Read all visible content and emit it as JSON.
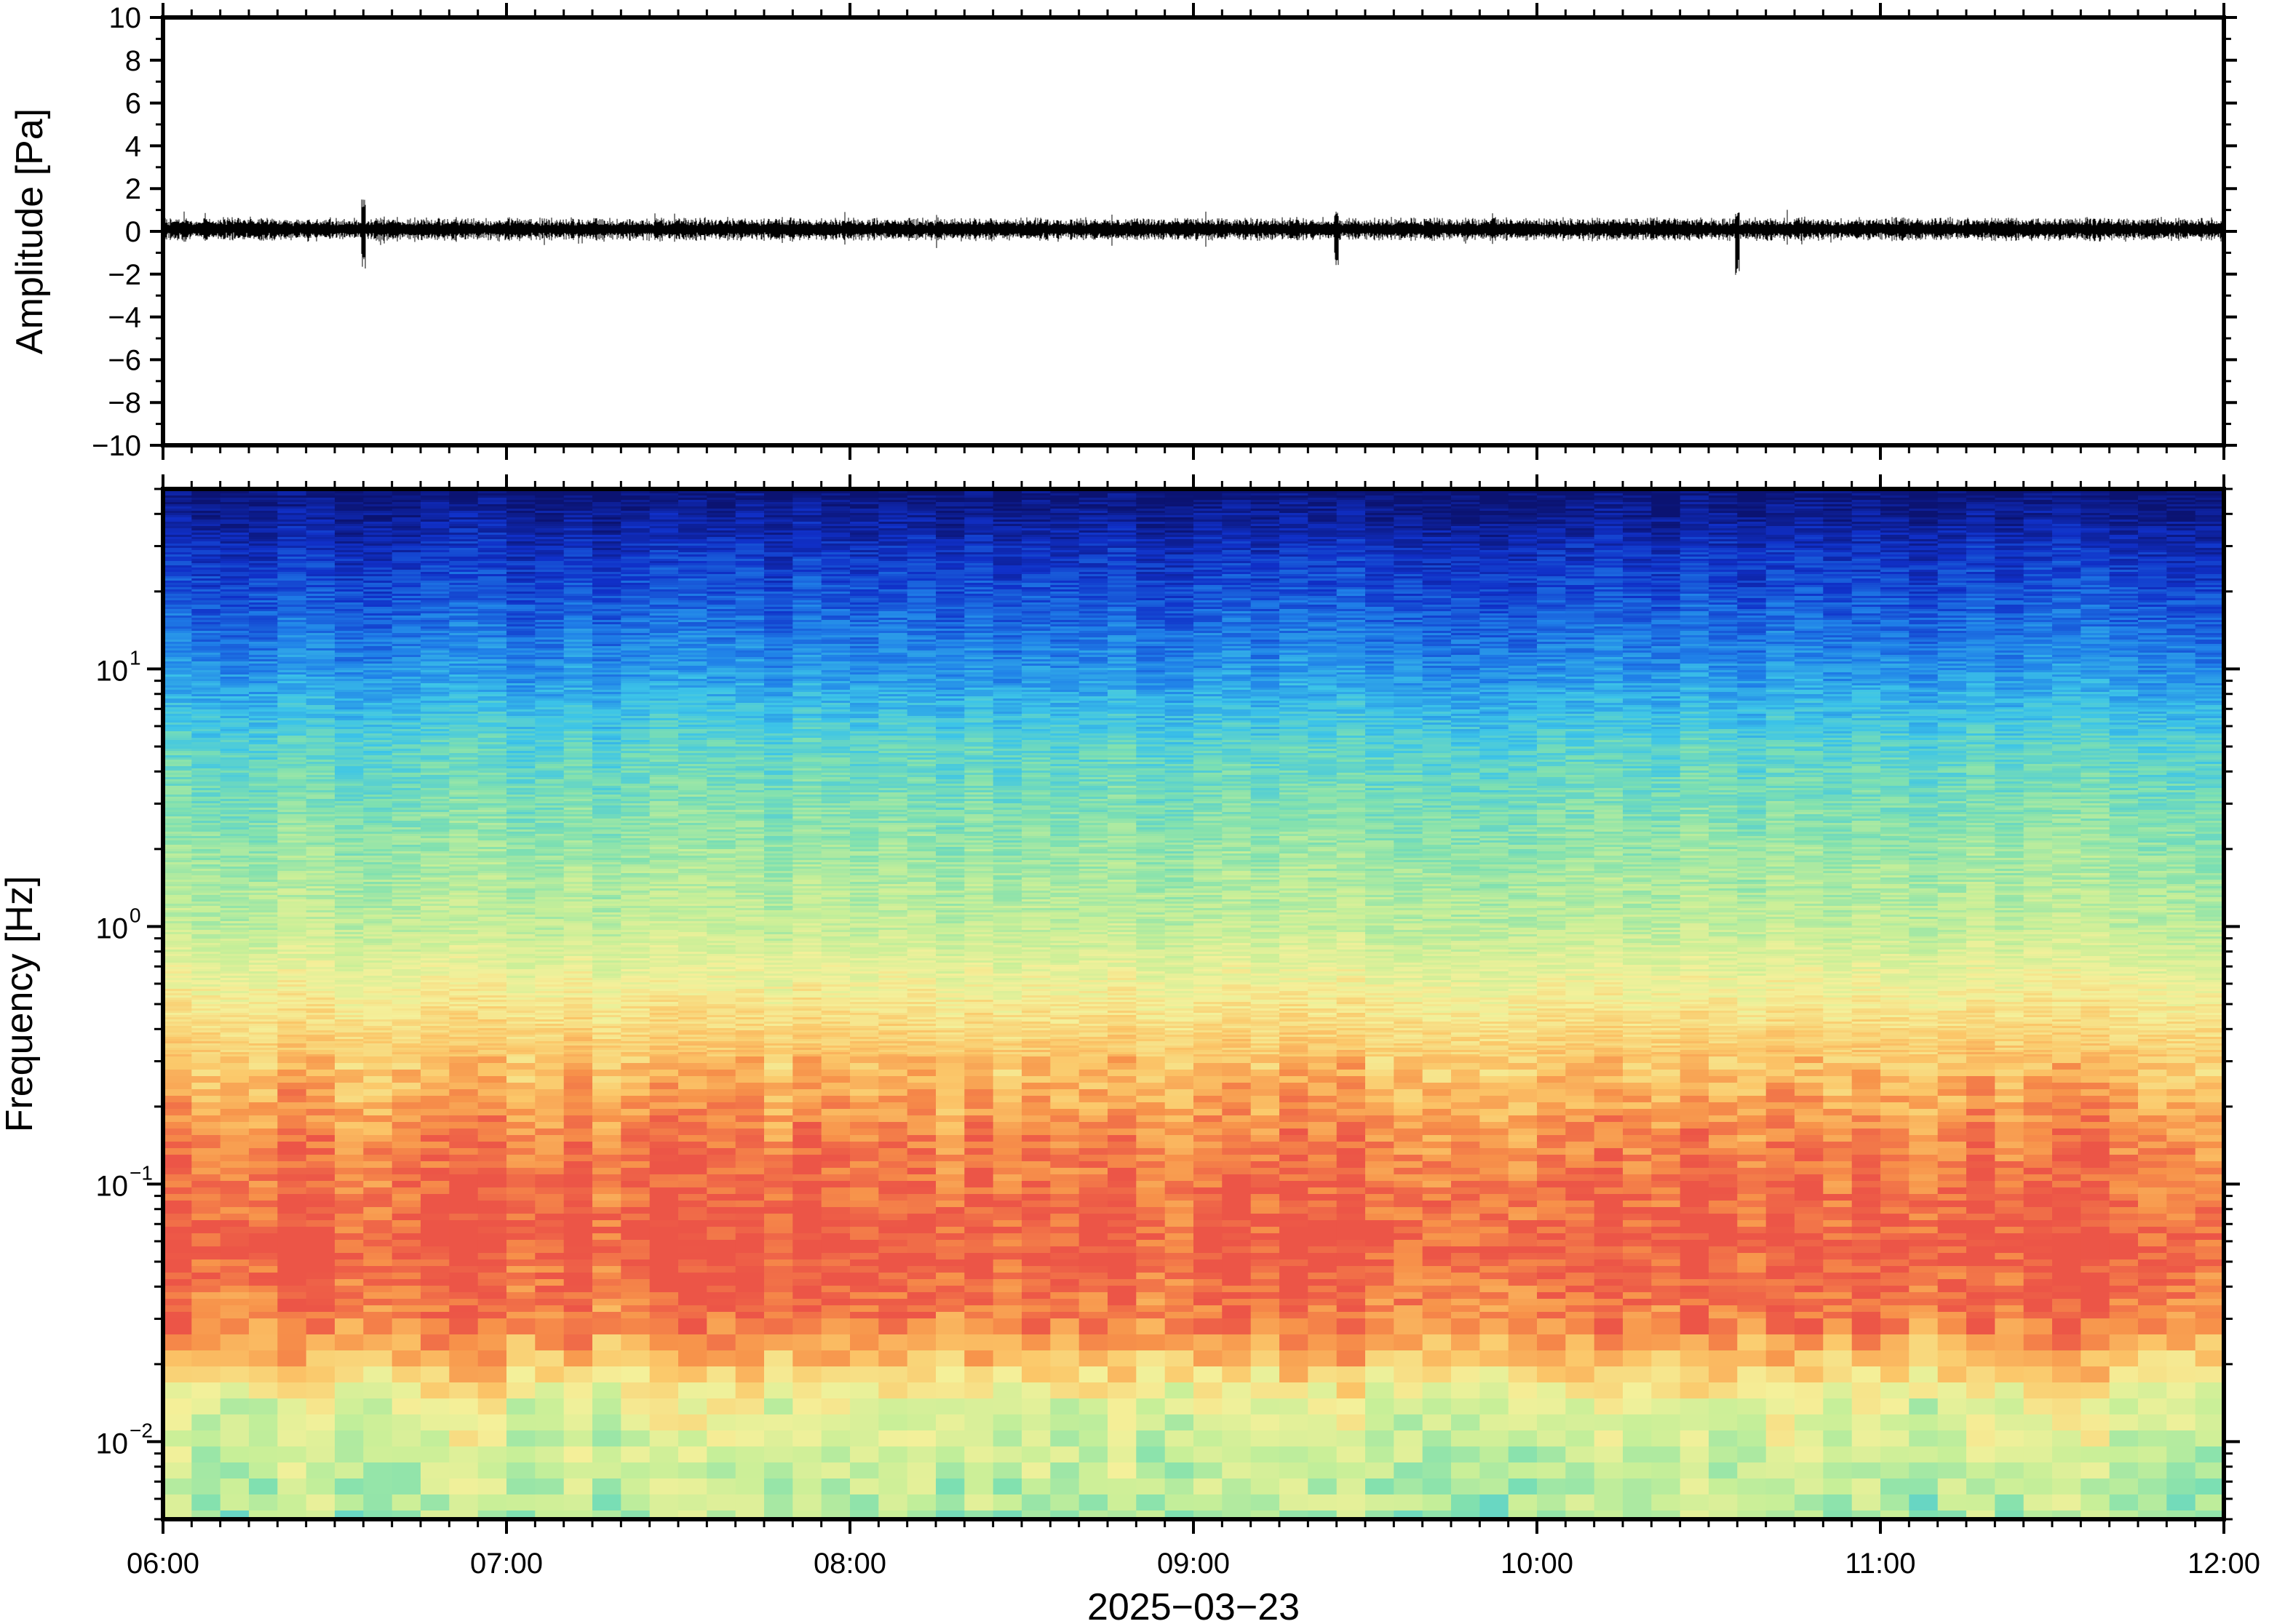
{
  "chart_data": [
    {
      "type": "line",
      "panel": "waveform",
      "ylabel": "Amplitude [Pa]",
      "ylim": [
        -10,
        10
      ],
      "yticks": [
        "10",
        "8",
        "6",
        "4",
        "2",
        "0",
        "−2",
        "−4",
        "−6",
        "−8",
        "−10"
      ],
      "ytick_values": [
        10,
        8,
        6,
        4,
        2,
        0,
        -2,
        -4,
        -6,
        -8,
        -10
      ],
      "xlim": [
        "06:00",
        "12:00"
      ],
      "grid": false,
      "series": [
        {
          "color": "#000000",
          "x_range": [
            "06:00",
            "12:00"
          ],
          "baseline": 0.1,
          "typical_amplitude": 0.5,
          "peaks": [
            {
              "time": "06:35",
              "max": 1.5,
              "min": -1.8
            },
            {
              "time": "09:25",
              "max": 1.0,
              "min": -1.6
            },
            {
              "time": "10:35",
              "max": 1.0,
              "min": -2.2
            }
          ]
        }
      ]
    },
    {
      "type": "heatmap",
      "panel": "spectrogram",
      "ylabel": "Frequency [Hz]",
      "y_scale": "log",
      "ylim": [
        0.005,
        50
      ],
      "yticks": [
        {
          "value": 10,
          "base": "10",
          "exp": "1"
        },
        {
          "value": 1,
          "base": "10",
          "exp": "0"
        },
        {
          "value": 0.1,
          "base": "10",
          "exp": "−1"
        },
        {
          "value": 0.01,
          "base": "10",
          "exp": "−2"
        }
      ],
      "xlabel": "2025−03−23",
      "xlim": [
        "06:00",
        "12:00"
      ],
      "xticks": [
        "06:00",
        "07:00",
        "08:00",
        "09:00",
        "10:00",
        "11:00",
        "12:00"
      ],
      "colormap": "spectral (dark blue = low power, red = high power)",
      "colors": [
        "#0b1372",
        "#1030c8",
        "#1f7fe8",
        "#3cc4e8",
        "#7fe0b0",
        "#c8ef98",
        "#f4f09a",
        "#fbc769",
        "#f7924a",
        "#ec5547"
      ],
      "profile_by_frequency": [
        {
          "freq": 50,
          "level": 0.0
        },
        {
          "freq": 30,
          "level": 0.9
        },
        {
          "freq": 10,
          "level": 2.3
        },
        {
          "freq": 5,
          "level": 3.5
        },
        {
          "freq": 1,
          "level": 5.0
        },
        {
          "freq": 0.4,
          "level": 6.6
        },
        {
          "freq": 0.15,
          "level": 8.2
        },
        {
          "freq": 0.06,
          "level": 9.0
        },
        {
          "freq": 0.03,
          "level": 8.2
        },
        {
          "freq": 0.015,
          "level": 5.6
        },
        {
          "freq": 0.005,
          "level": 4.6
        }
      ],
      "grid": false,
      "legend": "none"
    }
  ]
}
